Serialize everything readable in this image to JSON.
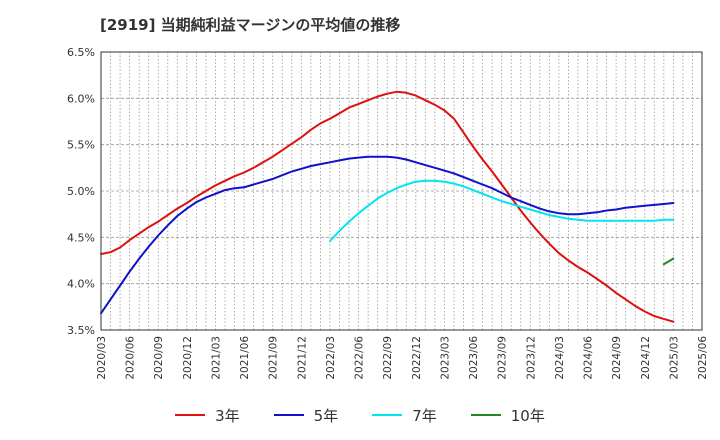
{
  "chart_data": {
    "type": "line",
    "title": "[2919]  当期純利益マージンの平均値の推移",
    "xlabel": "",
    "ylabel": "",
    "ylim": [
      3.5,
      6.5
    ],
    "yticks": [
      "3.5%",
      "4.0%",
      "4.5%",
      "5.0%",
      "5.5%",
      "6.0%",
      "6.5%"
    ],
    "ytick_values": [
      3.5,
      4.0,
      4.5,
      5.0,
      5.5,
      6.0,
      6.5
    ],
    "xticks": [
      "2020/03",
      "2020/06",
      "2020/09",
      "2020/12",
      "2021/03",
      "2021/06",
      "2021/09",
      "2021/12",
      "2022/03",
      "2022/06",
      "2022/09",
      "2022/12",
      "2023/03",
      "2023/06",
      "2023/09",
      "2023/12",
      "2024/03",
      "2024/06",
      "2024/09",
      "2024/12",
      "2025/03",
      "2025/06"
    ],
    "grid": true,
    "legend_position": "bottom",
    "series": [
      {
        "name": "3年",
        "color": "#dd1111",
        "x": [
          "2020/03",
          "2020/04",
          "2020/05",
          "2020/06",
          "2020/07",
          "2020/08",
          "2020/09",
          "2020/10",
          "2020/11",
          "2020/12",
          "2021/01",
          "2021/02",
          "2021/03",
          "2021/04",
          "2021/05",
          "2021/06",
          "2021/07",
          "2021/08",
          "2021/09",
          "2021/10",
          "2021/11",
          "2021/12",
          "2022/01",
          "2022/02",
          "2022/03",
          "2022/04",
          "2022/05",
          "2022/06",
          "2022/07",
          "2022/08",
          "2022/09",
          "2022/10",
          "2022/11",
          "2022/12",
          "2023/01",
          "2023/02",
          "2023/03",
          "2023/04",
          "2023/05",
          "2023/06",
          "2023/07",
          "2023/08",
          "2023/09",
          "2023/10",
          "2023/11",
          "2023/12",
          "2024/01",
          "2024/02",
          "2024/03",
          "2024/04",
          "2024/05",
          "2024/06",
          "2024/07",
          "2024/08",
          "2024/09",
          "2024/10",
          "2024/11",
          "2024/12",
          "2025/01",
          "2025/02",
          "2025/03"
        ],
        "values": [
          4.32,
          4.34,
          4.39,
          4.47,
          4.54,
          4.61,
          4.67,
          4.74,
          4.81,
          4.87,
          4.94,
          5.0,
          5.06,
          5.11,
          5.16,
          5.2,
          5.25,
          5.31,
          5.37,
          5.44,
          5.51,
          5.58,
          5.66,
          5.73,
          5.78,
          5.84,
          5.9,
          5.94,
          5.98,
          6.02,
          6.05,
          6.07,
          6.06,
          6.03,
          5.98,
          5.93,
          5.87,
          5.78,
          5.63,
          5.48,
          5.34,
          5.21,
          5.07,
          4.93,
          4.79,
          4.66,
          4.54,
          4.43,
          4.33,
          4.25,
          4.18,
          4.12,
          4.05,
          3.98,
          3.9,
          3.83,
          3.76,
          3.7,
          3.65,
          3.62,
          3.59
        ]
      },
      {
        "name": "5年",
        "color": "#1111cc",
        "x": [
          "2020/03",
          "2020/04",
          "2020/05",
          "2020/06",
          "2020/07",
          "2020/08",
          "2020/09",
          "2020/10",
          "2020/11",
          "2020/12",
          "2021/01",
          "2021/02",
          "2021/03",
          "2021/04",
          "2021/05",
          "2021/06",
          "2021/07",
          "2021/08",
          "2021/09",
          "2021/10",
          "2021/11",
          "2021/12",
          "2022/01",
          "2022/02",
          "2022/03",
          "2022/04",
          "2022/05",
          "2022/06",
          "2022/07",
          "2022/08",
          "2022/09",
          "2022/10",
          "2022/11",
          "2022/12",
          "2023/01",
          "2023/02",
          "2023/03",
          "2023/04",
          "2023/05",
          "2023/06",
          "2023/07",
          "2023/08",
          "2023/09",
          "2023/10",
          "2023/11",
          "2023/12",
          "2024/01",
          "2024/02",
          "2024/03",
          "2024/04",
          "2024/05",
          "2024/06",
          "2024/07",
          "2024/08",
          "2024/09",
          "2024/10",
          "2024/11",
          "2024/12",
          "2025/01",
          "2025/02",
          "2025/03"
        ],
        "values": [
          3.68,
          3.83,
          3.98,
          4.13,
          4.27,
          4.4,
          4.52,
          4.63,
          4.73,
          4.81,
          4.88,
          4.93,
          4.97,
          5.01,
          5.03,
          5.04,
          5.07,
          5.1,
          5.13,
          5.17,
          5.21,
          5.24,
          5.27,
          5.29,
          5.31,
          5.33,
          5.35,
          5.36,
          5.37,
          5.37,
          5.37,
          5.36,
          5.34,
          5.31,
          5.28,
          5.25,
          5.22,
          5.19,
          5.15,
          5.11,
          5.07,
          5.03,
          4.98,
          4.93,
          4.89,
          4.85,
          4.81,
          4.78,
          4.76,
          4.75,
          4.75,
          4.76,
          4.77,
          4.79,
          4.8,
          4.82,
          4.83,
          4.84,
          4.85,
          4.86,
          4.87
        ]
      },
      {
        "name": "7年",
        "color": "#00e5f0",
        "x": [
          "2022/03",
          "2022/04",
          "2022/05",
          "2022/06",
          "2022/07",
          "2022/08",
          "2022/09",
          "2022/10",
          "2022/11",
          "2022/12",
          "2023/01",
          "2023/02",
          "2023/03",
          "2023/04",
          "2023/05",
          "2023/06",
          "2023/07",
          "2023/08",
          "2023/09",
          "2023/10",
          "2023/11",
          "2023/12",
          "2024/01",
          "2024/02",
          "2024/03",
          "2024/04",
          "2024/05",
          "2024/06",
          "2024/07",
          "2024/08",
          "2024/09",
          "2024/10",
          "2024/11",
          "2024/12",
          "2025/01",
          "2025/02",
          "2025/03"
        ],
        "values": [
          4.46,
          4.57,
          4.67,
          4.76,
          4.84,
          4.92,
          4.98,
          5.03,
          5.07,
          5.1,
          5.11,
          5.11,
          5.1,
          5.08,
          5.05,
          5.01,
          4.97,
          4.93,
          4.89,
          4.86,
          4.83,
          4.8,
          4.77,
          4.74,
          4.72,
          4.7,
          4.69,
          4.68,
          4.68,
          4.68,
          4.68,
          4.68,
          4.68,
          4.68,
          4.68,
          4.69,
          4.69
        ]
      },
      {
        "name": "10年",
        "color": "#228822",
        "x": [
          "2025/02",
          "2025/03"
        ],
        "values": [
          4.21,
          4.27
        ]
      }
    ]
  }
}
